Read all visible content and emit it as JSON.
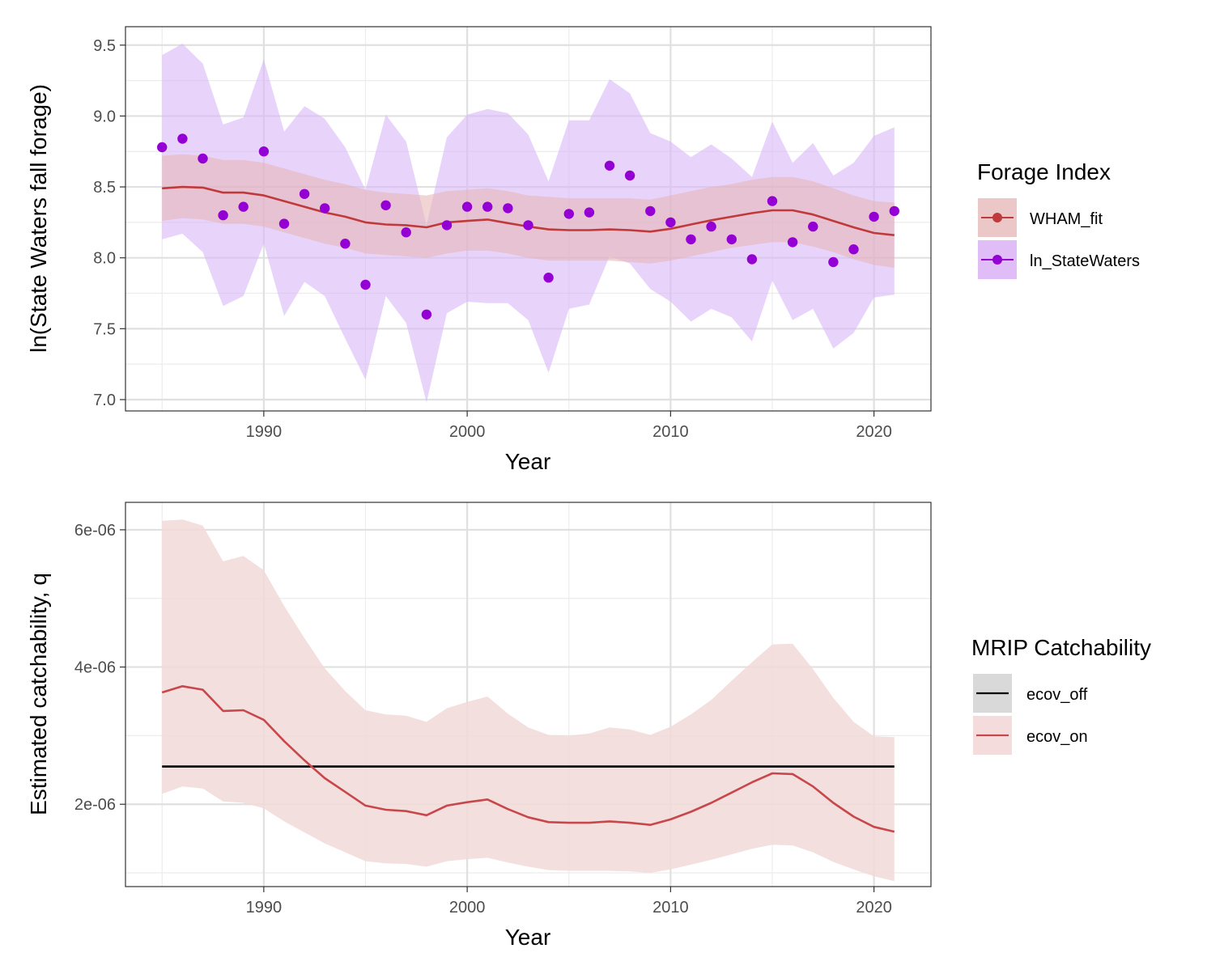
{
  "colors": {
    "wham": "#c0393b",
    "state": "#9400d3",
    "state_band": "#d9b8f7",
    "wham_band": "#e6b3b3",
    "ecov_off": "#000000",
    "ecov_on": "#c8474a",
    "ecov_on_band": "#f2d9d9",
    "grid_major": "#e0e0e0",
    "grid_minor": "#ececec",
    "panel_border": "#333333"
  },
  "chart_data": [
    {
      "type": "line",
      "panel": "top",
      "xlabel": "Year",
      "ylabel": "ln(State Waters fall forage)",
      "xlim": [
        1983.2,
        2022.8
      ],
      "ylim": [
        6.92,
        9.63
      ],
      "x_ticks": [
        1990,
        2000,
        2010,
        2020
      ],
      "y_ticks": [
        7.0,
        7.5,
        8.0,
        8.5,
        9.0,
        9.5
      ],
      "y_tick_labels": [
        "7.0",
        "7.5",
        "8.0",
        "8.5",
        "9.0",
        "9.5"
      ],
      "legend": {
        "title": "Forage Index",
        "position": "right",
        "entries": [
          "WHAM_fit",
          "ln_StateWaters"
        ]
      },
      "x": [
        1985,
        1986,
        1987,
        1988,
        1989,
        1990,
        1991,
        1992,
        1993,
        1994,
        1995,
        1996,
        1997,
        1998,
        1999,
        2000,
        2001,
        2002,
        2003,
        2004,
        2005,
        2006,
        2007,
        2008,
        2009,
        2010,
        2011,
        2012,
        2013,
        2014,
        2015,
        2016,
        2017,
        2018,
        2019,
        2020,
        2021
      ],
      "series": [
        {
          "name": "WHAM_fit",
          "style": "line+ribbon",
          "values": [
            8.49,
            8.5,
            8.495,
            8.46,
            8.46,
            8.44,
            8.4,
            8.36,
            8.32,
            8.29,
            8.25,
            8.235,
            8.23,
            8.215,
            8.25,
            8.26,
            8.27,
            8.245,
            8.22,
            8.2,
            8.195,
            8.195,
            8.2,
            8.195,
            8.185,
            8.205,
            8.235,
            8.265,
            8.29,
            8.315,
            8.335,
            8.335,
            8.305,
            8.26,
            8.215,
            8.175,
            8.16
          ],
          "lower": [
            8.26,
            8.28,
            8.27,
            8.24,
            8.24,
            8.22,
            8.18,
            8.14,
            8.1,
            8.07,
            8.03,
            8.02,
            8.01,
            8.0,
            8.03,
            8.05,
            8.05,
            8.03,
            8.0,
            7.98,
            7.98,
            7.98,
            7.98,
            7.97,
            7.96,
            7.98,
            8.01,
            8.04,
            8.07,
            8.09,
            8.11,
            8.11,
            8.08,
            8.04,
            7.99,
            7.95,
            7.93
          ],
          "upper": [
            8.72,
            8.73,
            8.72,
            8.69,
            8.69,
            8.67,
            8.63,
            8.59,
            8.55,
            8.52,
            8.48,
            8.46,
            8.45,
            8.44,
            8.47,
            8.48,
            8.49,
            8.47,
            8.44,
            8.43,
            8.42,
            8.42,
            8.42,
            8.42,
            8.41,
            8.44,
            8.47,
            8.5,
            8.52,
            8.55,
            8.57,
            8.57,
            8.54,
            8.49,
            8.44,
            8.4,
            8.39
          ]
        },
        {
          "name": "ln_StateWaters",
          "style": "points+ribbon",
          "values": [
            8.78,
            8.84,
            8.7,
            8.3,
            8.36,
            8.75,
            8.24,
            8.45,
            8.35,
            8.1,
            7.81,
            8.37,
            8.18,
            7.6,
            8.23,
            8.36,
            8.36,
            8.35,
            8.23,
            7.86,
            8.31,
            8.32,
            8.65,
            8.58,
            8.33,
            8.25,
            8.13,
            8.22,
            8.13,
            7.99,
            8.4,
            8.11,
            8.22,
            7.97,
            8.06,
            8.29,
            8.33
          ],
          "lower": [
            8.13,
            8.17,
            8.04,
            7.66,
            7.73,
            8.1,
            7.59,
            7.83,
            7.73,
            7.43,
            7.14,
            7.73,
            7.54,
            6.98,
            7.61,
            7.69,
            7.68,
            7.68,
            7.56,
            7.19,
            7.64,
            7.67,
            8.01,
            7.96,
            7.78,
            7.69,
            7.55,
            7.64,
            7.58,
            7.41,
            7.84,
            7.56,
            7.64,
            7.36,
            7.47,
            7.72,
            7.74
          ],
          "upper": [
            9.43,
            9.51,
            9.37,
            8.94,
            8.99,
            9.4,
            8.89,
            9.07,
            8.98,
            8.78,
            8.48,
            9.01,
            8.82,
            8.23,
            8.85,
            9.01,
            9.05,
            9.02,
            8.87,
            8.54,
            8.97,
            8.97,
            9.26,
            9.16,
            8.88,
            8.82,
            8.71,
            8.8,
            8.7,
            8.57,
            8.96,
            8.67,
            8.81,
            8.58,
            8.67,
            8.86,
            8.92
          ]
        }
      ]
    },
    {
      "type": "line",
      "panel": "bottom",
      "xlabel": "Year",
      "ylabel": "Estimated catchability, q",
      "xlim": [
        1983.2,
        2022.8
      ],
      "ylim": [
        8e-07,
        6.4e-06
      ],
      "x_ticks": [
        1990,
        2000,
        2010,
        2020
      ],
      "y_ticks": [
        2e-06,
        4e-06,
        6e-06
      ],
      "y_tick_labels": [
        "2e-06",
        "4e-06",
        "6e-06"
      ],
      "legend": {
        "title": "MRIP Catchability",
        "position": "right",
        "entries": [
          "ecov_off",
          "ecov_on"
        ]
      },
      "x": [
        1985,
        1986,
        1987,
        1988,
        1989,
        1990,
        1991,
        1992,
        1993,
        1994,
        1995,
        1996,
        1997,
        1998,
        1999,
        2000,
        2001,
        2002,
        2003,
        2004,
        2005,
        2006,
        2007,
        2008,
        2009,
        2010,
        2011,
        2012,
        2013,
        2014,
        2015,
        2016,
        2017,
        2018,
        2019,
        2020,
        2021
      ],
      "series": [
        {
          "name": "ecov_off",
          "style": "line",
          "values": [
            2.55e-06,
            2.55e-06,
            2.55e-06,
            2.55e-06,
            2.55e-06,
            2.55e-06,
            2.55e-06,
            2.55e-06,
            2.55e-06,
            2.55e-06,
            2.55e-06,
            2.55e-06,
            2.55e-06,
            2.55e-06,
            2.55e-06,
            2.55e-06,
            2.55e-06,
            2.55e-06,
            2.55e-06,
            2.55e-06,
            2.55e-06,
            2.55e-06,
            2.55e-06,
            2.55e-06,
            2.55e-06,
            2.55e-06,
            2.55e-06,
            2.55e-06,
            2.55e-06,
            2.55e-06,
            2.55e-06,
            2.55e-06,
            2.55e-06,
            2.55e-06,
            2.55e-06,
            2.55e-06,
            2.55e-06
          ]
        },
        {
          "name": "ecov_on",
          "style": "line+ribbon",
          "values": [
            3.63e-06,
            3.72e-06,
            3.67e-06,
            3.36e-06,
            3.37e-06,
            3.23e-06,
            2.92e-06,
            2.64e-06,
            2.38e-06,
            2.18e-06,
            1.98e-06,
            1.92e-06,
            1.9e-06,
            1.84e-06,
            1.98e-06,
            2.03e-06,
            2.07e-06,
            1.93e-06,
            1.81e-06,
            1.74e-06,
            1.73e-06,
            1.73e-06,
            1.75e-06,
            1.73e-06,
            1.7e-06,
            1.78e-06,
            1.89e-06,
            2.02e-06,
            2.17e-06,
            2.32e-06,
            2.45e-06,
            2.44e-06,
            2.26e-06,
            2.02e-06,
            1.82e-06,
            1.67e-06,
            1.6e-06
          ],
          "lower": [
            2.15e-06,
            2.26e-06,
            2.23e-06,
            2.04e-06,
            2.02e-06,
            1.94e-06,
            1.75e-06,
            1.59e-06,
            1.43e-06,
            1.3e-06,
            1.17e-06,
            1.14e-06,
            1.13e-06,
            1.09e-06,
            1.17e-06,
            1.2e-06,
            1.22e-06,
            1.15e-06,
            1.09e-06,
            1.04e-06,
            1.03e-06,
            1.03e-06,
            1.03e-06,
            1.02e-06,
            1e-06,
            1.05e-06,
            1.12e-06,
            1.19e-06,
            1.27e-06,
            1.35e-06,
            1.41e-06,
            1.4e-06,
            1.3e-06,
            1.16e-06,
            1.05e-06,
            9.5e-07,
            8.8e-07
          ],
          "upper": [
            6.13e-06,
            6.15e-06,
            6.06e-06,
            5.54e-06,
            5.62e-06,
            5.41e-06,
            4.89e-06,
            4.42e-06,
            3.98e-06,
            3.65e-06,
            3.37e-06,
            3.31e-06,
            3.29e-06,
            3.2e-06,
            3.4e-06,
            3.49e-06,
            3.57e-06,
            3.32e-06,
            3.12e-06,
            3.01e-06,
            3e-06,
            3.03e-06,
            3.12e-06,
            3.09e-06,
            3.01e-06,
            3.13e-06,
            3.31e-06,
            3.52e-06,
            3.8e-06,
            4.07e-06,
            4.33e-06,
            4.34e-06,
            3.97e-06,
            3.55e-06,
            3.2e-06,
            2.99e-06,
            2.98e-06
          ]
        }
      ]
    }
  ]
}
